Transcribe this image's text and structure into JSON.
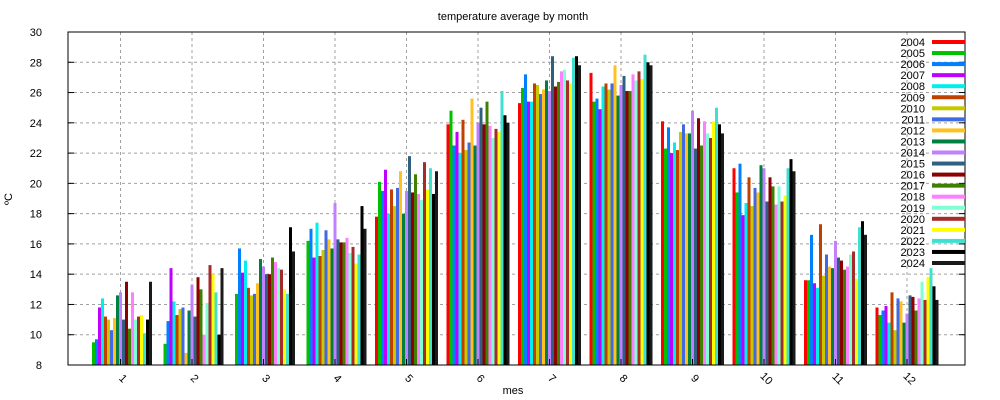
{
  "chart_data": {
    "type": "bar",
    "title": "temperature average by month",
    "xlabel": "mes",
    "ylabel": "ºC",
    "ylim": [
      8,
      30
    ],
    "yticks": [
      "8",
      "10",
      "12",
      "14",
      "16",
      "18",
      "20",
      "22",
      "24",
      "26",
      "28",
      "30"
    ],
    "grid": true,
    "legend_position": "top-right",
    "categories": [
      "1",
      "2",
      "3",
      "4",
      "5",
      "6",
      "7",
      "8",
      "9",
      "10",
      "11",
      "12"
    ],
    "series": [
      {
        "name": "2004",
        "color": "#ff0000",
        "values": [
          null,
          null,
          null,
          null,
          17.8,
          23.9,
          25.3,
          27.3,
          24.1,
          21.0,
          13.6,
          11.8
        ]
      },
      {
        "name": "2005",
        "color": "#00c000",
        "values": [
          9.5,
          9.4,
          12.7,
          16.2,
          20.1,
          24.8,
          26.3,
          25.4,
          22.3,
          19.4,
          13.6,
          11.3
        ]
      },
      {
        "name": "2006",
        "color": "#0080ff",
        "values": [
          9.7,
          10.9,
          15.7,
          17.0,
          19.5,
          22.5,
          27.2,
          25.6,
          23.7,
          21.3,
          16.6,
          11.6
        ]
      },
      {
        "name": "2007",
        "color": "#c000ff",
        "values": [
          11.8,
          14.4,
          14.1,
          15.1,
          20.9,
          23.4,
          25.4,
          24.9,
          22.0,
          17.9,
          13.4,
          11.9
        ]
      },
      {
        "name": "2008",
        "color": "#00eeee",
        "values": [
          12.4,
          12.2,
          14.9,
          17.4,
          18.0,
          22.0,
          25.4,
          26.4,
          22.7,
          18.7,
          13.1,
          10.8
        ]
      },
      {
        "name": "2009",
        "color": "#c04000",
        "values": [
          11.2,
          11.3,
          13.1,
          15.2,
          19.6,
          24.2,
          26.6,
          26.6,
          22.2,
          20.4,
          17.3,
          12.8
        ]
      },
      {
        "name": "2010",
        "color": "#c8c800",
        "values": [
          11.0,
          11.7,
          12.6,
          15.6,
          18.5,
          22.2,
          26.5,
          26.2,
          23.4,
          18.5,
          13.9,
          10.3
        ]
      },
      {
        "name": "2011",
        "color": "#4169e1",
        "values": [
          10.3,
          11.8,
          12.7,
          16.9,
          19.7,
          22.7,
          25.9,
          26.6,
          23.9,
          19.7,
          15.3,
          12.4
        ]
      },
      {
        "name": "2012",
        "color": "#ffc020",
        "values": [
          11.1,
          8.8,
          13.4,
          16.3,
          20.8,
          25.6,
          26.2,
          27.8,
          23.3,
          19.4,
          14.5,
          12.2
        ]
      },
      {
        "name": "2013",
        "color": "#008040",
        "values": [
          12.6,
          11.6,
          15.0,
          15.7,
          18.0,
          22.5,
          26.8,
          25.8,
          23.3,
          21.2,
          14.4,
          10.8
        ]
      },
      {
        "name": "2014",
        "color": "#c080ff",
        "values": [
          12.8,
          13.3,
          14.5,
          18.7,
          19.5,
          24.0,
          26.1,
          26.5,
          24.8,
          21.0,
          16.2,
          11.4
        ]
      },
      {
        "name": "2015",
        "color": "#306080",
        "values": [
          11.0,
          11.2,
          14.0,
          16.3,
          21.8,
          25.0,
          28.4,
          27.1,
          22.3,
          18.8,
          15.1,
          12.6
        ]
      },
      {
        "name": "2016",
        "color": "#8b0000",
        "values": [
          13.5,
          13.8,
          14.0,
          16.1,
          19.4,
          23.9,
          26.4,
          26.1,
          24.3,
          20.4,
          14.9,
          12.5
        ]
      },
      {
        "name": "2017",
        "color": "#408000",
        "values": [
          10.4,
          13.0,
          15.1,
          16.1,
          20.6,
          25.4,
          26.7,
          26.1,
          22.5,
          19.8,
          14.3,
          11.6
        ]
      },
      {
        "name": "2018",
        "color": "#ff80ff",
        "values": [
          12.8,
          10.0,
          14.8,
          16.4,
          19.3,
          23.8,
          27.4,
          27.2,
          24.1,
          18.6,
          14.5,
          12.4
        ]
      },
      {
        "name": "2019",
        "color": "#7fffd4",
        "values": [
          11.0,
          12.1,
          14.4,
          15.4,
          18.9,
          23.0,
          27.5,
          26.8,
          23.3,
          19.8,
          15.3,
          13.5
        ]
      },
      {
        "name": "2020",
        "color": "#a52a2a",
        "values": [
          11.2,
          14.6,
          14.3,
          15.8,
          21.4,
          23.6,
          26.8,
          27.4,
          23.0,
          18.8,
          15.5,
          12.3
        ]
      },
      {
        "name": "2021",
        "color": "#ffff00",
        "values": [
          11.3,
          14.0,
          13.0,
          14.7,
          19.6,
          23.4,
          26.6,
          26.9,
          24.1,
          19.2,
          13.7,
          13.8
        ]
      },
      {
        "name": "2022",
        "color": "#40e0d0",
        "values": [
          10.1,
          12.8,
          12.7,
          15.3,
          21.0,
          26.1,
          28.3,
          28.5,
          25.0,
          21.0,
          17.1,
          14.4
        ]
      },
      {
        "name": "2023",
        "color": "#000000",
        "values": [
          11.0,
          10.0,
          17.1,
          18.5,
          19.3,
          24.5,
          28.4,
          28.0,
          23.9,
          21.6,
          17.5,
          13.2
        ]
      },
      {
        "name": "2024",
        "color": "#1a1a1a",
        "values": [
          13.5,
          14.4,
          15.5,
          17.0,
          20.8,
          24.0,
          27.8,
          27.8,
          23.3,
          20.8,
          16.6,
          12.3
        ]
      }
    ]
  }
}
